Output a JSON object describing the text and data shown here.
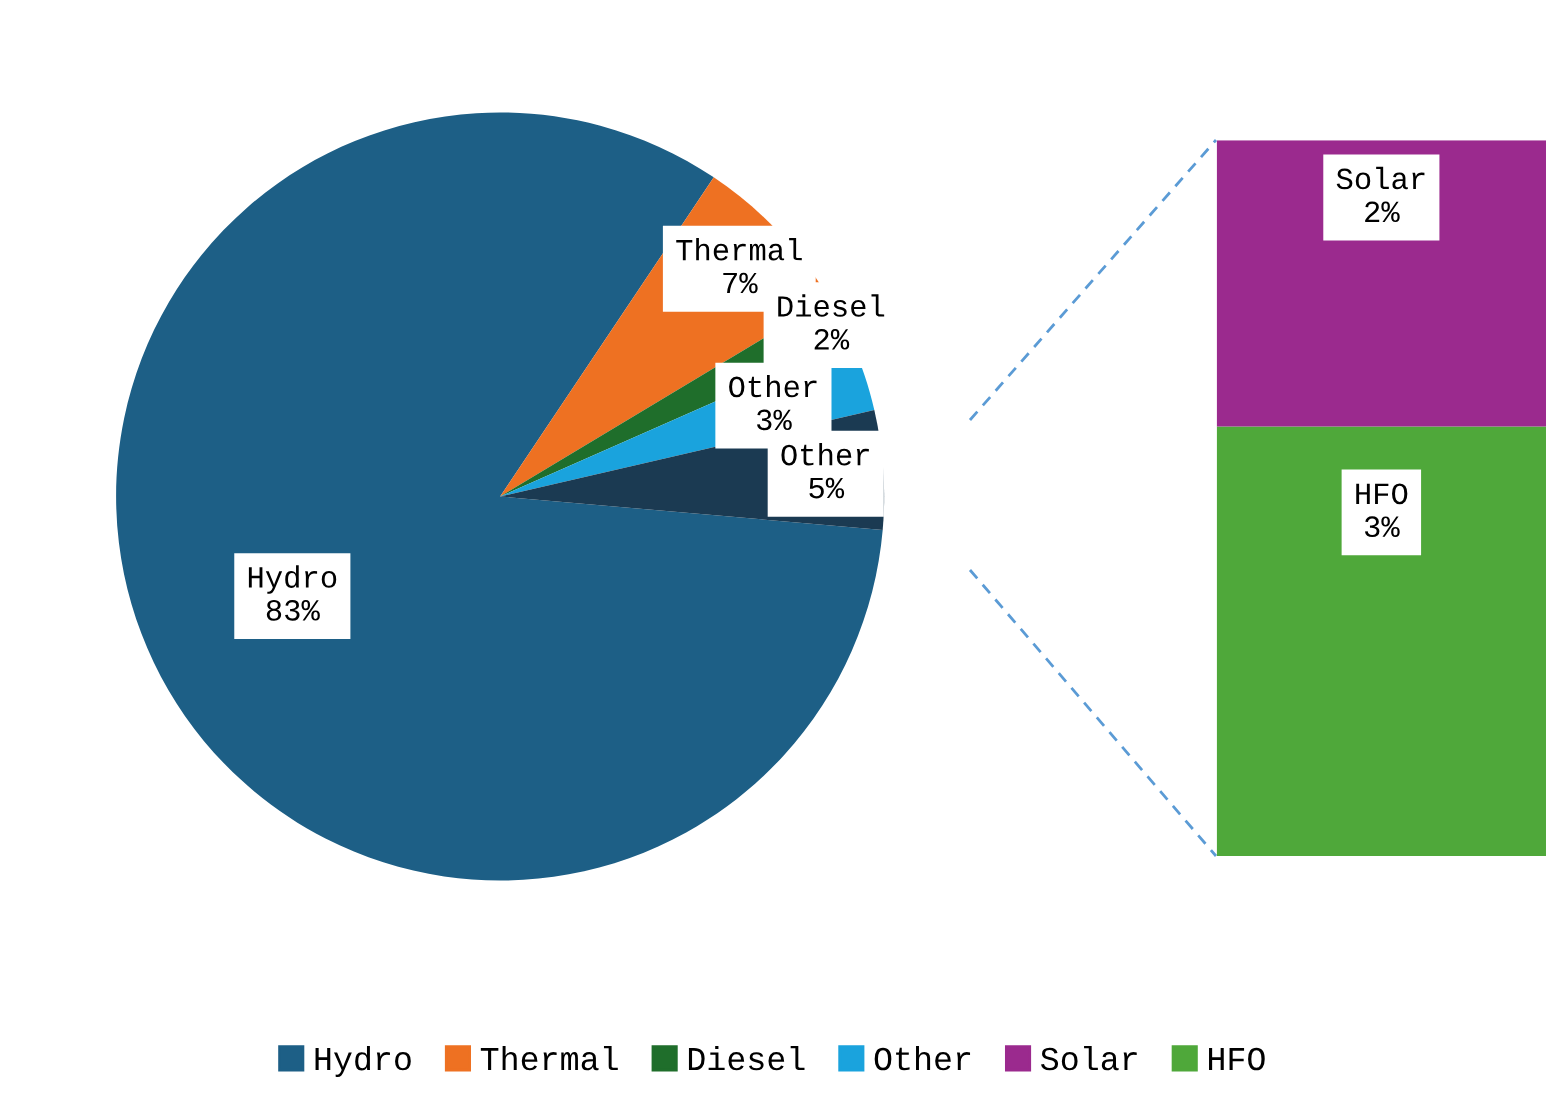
{
  "chart_data": [
    {
      "type": "pie",
      "categories": [
        "Hydro",
        "Thermal",
        "Diesel",
        "Other",
        "Other"
      ],
      "values": [
        83,
        7,
        2,
        3,
        5
      ],
      "value_labels": [
        "83%",
        "7%",
        "2%",
        "3%",
        "5%"
      ],
      "colors": [
        "#1d5f86",
        "#ee7122",
        "#1f6e2b",
        "#1aa3dd",
        "#1b3a52"
      ],
      "legend": "bottom"
    },
    {
      "type": "bar",
      "stacked": true,
      "categories": [
        null
      ],
      "legend": "bottom",
      "series": [
        {
          "name": "HFO",
          "color": "#4fa83a",
          "values": [
            3
          ],
          "value_labels": [
            "3%"
          ]
        },
        {
          "name": "Solar",
          "color": "#9b2a8e",
          "values": [
            2
          ],
          "value_labels": [
            "2%"
          ]
        }
      ]
    }
  ]
}
